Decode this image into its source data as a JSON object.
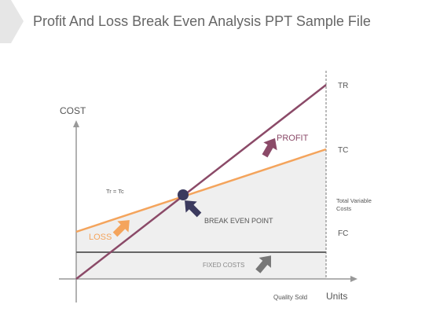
{
  "header": {
    "title": "Profit And Loss Break Even Analysis PPT Sample File"
  },
  "axes": {
    "y_label": "COST",
    "x_label": "Units",
    "x_sublabel": "Quality Sold"
  },
  "lines": {
    "tr": "TR",
    "tc": "TC",
    "fc": "FC",
    "variable": [
      "Total Variable",
      "Costs"
    ]
  },
  "annotations": {
    "equation": "Tr = Tc",
    "profit": "PROFIT",
    "loss": "LOSS",
    "break_even": "BREAK EVEN POINT",
    "fixed_costs": "FIXED COSTS"
  }
}
